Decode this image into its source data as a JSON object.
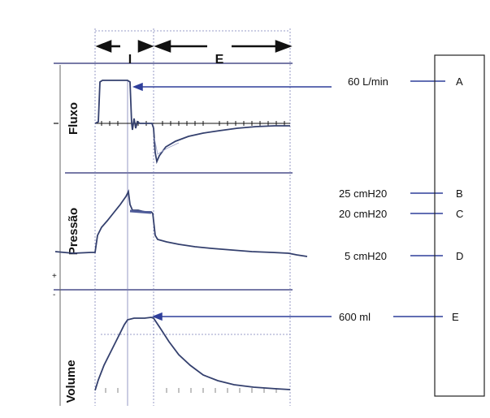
{
  "phases": {
    "inspiration": "I",
    "expiration": "E"
  },
  "panels": {
    "flow": "Fluxo",
    "pressure": "Pressão",
    "volume": "Volume"
  },
  "annotations": [
    {
      "value": "60 L/min",
      "letter": "A"
    },
    {
      "value": "25 cmH20",
      "letter": "B"
    },
    {
      "value": "20 cmH20",
      "letter": "C"
    },
    {
      "value": "5 cmH20",
      "letter": "D"
    },
    {
      "value": "600 ml",
      "letter": "E"
    }
  ],
  "axis_marks": {
    "plus": "+",
    "minus": "-"
  },
  "colors": {
    "trace": "#34406e",
    "panel_line": "#4a4f8a",
    "guide": "#6a74b8",
    "ink": "#111111"
  }
}
